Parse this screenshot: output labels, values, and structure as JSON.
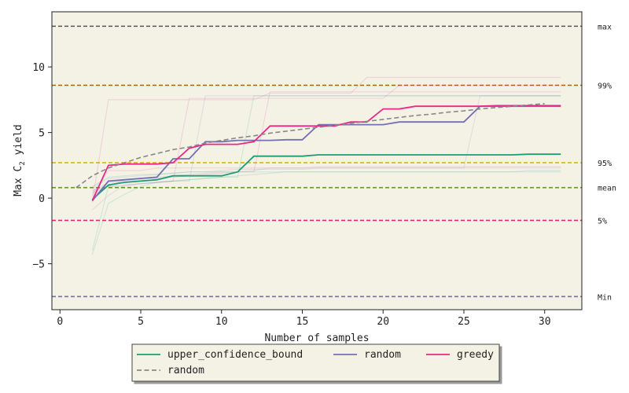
{
  "chart_data": {
    "type": "line",
    "title": "",
    "xlabel": "Number of samples",
    "ylabel_main": "Max C",
    "ylabel_sub": "2",
    "ylabel_tail": " yield",
    "xlim": [
      -0.5,
      32.3
    ],
    "ylim": [
      -8.5,
      14.2
    ],
    "xticks": [
      0,
      5,
      10,
      15,
      20,
      25,
      30
    ],
    "yticks": [
      -5,
      0,
      5,
      10
    ],
    "ytick_labels": [
      "−5",
      "0",
      "5",
      "10"
    ],
    "plot_bg": "#f3f2e5",
    "reference_lines": [
      {
        "label": "max",
        "y": 13.1,
        "color": "#555555"
      },
      {
        "label": "99%",
        "y": 8.6,
        "color": "#a6620a"
      },
      {
        "label": "95%",
        "y": 2.7,
        "color": "#e6a800"
      },
      {
        "label": "mean",
        "y": 0.8,
        "color": "#5a9e1a"
      },
      {
        "label": "5%",
        "y": -1.7,
        "color": "#e0287a"
      },
      {
        "label": "Min",
        "y": -7.5,
        "color": "#7570b3"
      }
    ],
    "series": [
      {
        "name": "upper_confidence_bound",
        "color": "#1b9e77",
        "dashed": false,
        "x": [
          2,
          3,
          4,
          5,
          6,
          7,
          8,
          9,
          10,
          11,
          12,
          13,
          14,
          15,
          16,
          17,
          18,
          19,
          20,
          21,
          22,
          23,
          24,
          25,
          26,
          27,
          28,
          29,
          30,
          31
        ],
        "y": [
          -0.1,
          1.0,
          1.2,
          1.3,
          1.4,
          1.7,
          1.7,
          1.7,
          1.7,
          2.0,
          3.2,
          3.2,
          3.2,
          3.2,
          3.3,
          3.3,
          3.3,
          3.3,
          3.3,
          3.3,
          3.3,
          3.3,
          3.3,
          3.3,
          3.3,
          3.3,
          3.3,
          3.35,
          3.35,
          3.35
        ]
      },
      {
        "name": "random",
        "color": "#7570b3",
        "dashed": false,
        "x": [
          2,
          3,
          4,
          5,
          6,
          7,
          8,
          9,
          10,
          11,
          12,
          13,
          14,
          15,
          16,
          17,
          18,
          19,
          20,
          21,
          22,
          23,
          24,
          25,
          26,
          27,
          28,
          29,
          30,
          31
        ],
        "y": [
          -0.2,
          1.3,
          1.4,
          1.5,
          1.6,
          3.0,
          3.0,
          4.3,
          4.3,
          4.4,
          4.4,
          4.4,
          4.45,
          4.45,
          5.6,
          5.6,
          5.6,
          5.6,
          5.6,
          5.8,
          5.8,
          5.8,
          5.8,
          5.8,
          7.0,
          7.0,
          7.0,
          7.0,
          7.0,
          7.0
        ]
      },
      {
        "name": "greedy",
        "color": "#e7298a",
        "dashed": false,
        "x": [
          2,
          3,
          4,
          5,
          6,
          7,
          8,
          9,
          10,
          11,
          12,
          13,
          14,
          15,
          16,
          17,
          18,
          19,
          20,
          21,
          22,
          23,
          24,
          25,
          26,
          27,
          28,
          29,
          30,
          31
        ],
        "y": [
          -0.2,
          2.5,
          2.6,
          2.6,
          2.6,
          2.7,
          3.8,
          4.1,
          4.1,
          4.1,
          4.3,
          5.5,
          5.5,
          5.5,
          5.5,
          5.5,
          5.8,
          5.8,
          6.8,
          6.8,
          7.0,
          7.0,
          7.0,
          7.0,
          7.0,
          7.05,
          7.05,
          7.05,
          7.05,
          7.05
        ]
      },
      {
        "name": "random",
        "color": "#888888",
        "dashed": true,
        "x": [
          1,
          2,
          3,
          4,
          5,
          6,
          7,
          8,
          9,
          10,
          11,
          12,
          13,
          14,
          15,
          16,
          17,
          18,
          19,
          20,
          21,
          22,
          23,
          24,
          25,
          26,
          27,
          28,
          29,
          30
        ],
        "y": [
          0.8,
          1.7,
          2.3,
          2.7,
          3.1,
          3.4,
          3.7,
          3.9,
          4.2,
          4.4,
          4.6,
          4.75,
          4.95,
          5.1,
          5.25,
          5.4,
          5.55,
          5.7,
          5.85,
          6.0,
          6.15,
          6.3,
          6.4,
          6.55,
          6.65,
          6.8,
          6.9,
          7.0,
          7.1,
          7.2
        ]
      }
    ],
    "background_traces": [
      {
        "color": "#e7298a",
        "y": [
          -0.3,
          7.5,
          7.5,
          7.5,
          7.5,
          7.5,
          7.5,
          7.5,
          7.5,
          7.5,
          7.5,
          8.0,
          8.0,
          8.0,
          8.0,
          8.0,
          8.0,
          9.2,
          9.2,
          9.2,
          9.2,
          9.2,
          9.2,
          9.2,
          9.2,
          9.2,
          9.2,
          9.2,
          9.2,
          9.2
        ]
      },
      {
        "color": "#e7298a",
        "y": [
          0.4,
          0.9,
          0.9,
          1.1,
          1.2,
          1.3,
          7.6,
          7.6,
          7.6,
          7.6,
          7.6,
          7.6,
          7.6,
          7.6,
          7.6,
          7.6,
          7.6,
          7.6,
          7.6,
          8.6,
          8.6,
          8.6,
          8.6,
          8.6,
          8.6,
          8.6,
          8.6,
          8.6,
          8.6,
          8.6
        ]
      },
      {
        "color": "#e7298a",
        "y": [
          0.2,
          2.1,
          2.1,
          2.1,
          2.3,
          2.3,
          2.3,
          2.3,
          2.3,
          2.3,
          2.3,
          2.3,
          2.3,
          2.3,
          2.3,
          2.3,
          2.3,
          2.3,
          2.3,
          2.3,
          2.3,
          2.3,
          2.3,
          2.3,
          2.3,
          2.3,
          2.3,
          2.3,
          2.3,
          2.3
        ]
      },
      {
        "color": "#e7298a",
        "y": [
          0.6,
          0.9,
          1.4,
          1.5,
          1.5,
          1.6,
          1.7,
          1.8,
          1.9,
          2.0,
          2.0,
          8.1,
          8.1,
          8.1,
          8.1,
          8.1,
          8.1,
          8.1,
          8.1,
          8.1,
          8.1,
          8.1,
          8.1,
          8.1,
          8.1,
          8.1,
          8.1,
          8.1,
          8.1,
          8.1
        ]
      },
      {
        "color": "#7570b3",
        "y": [
          -0.9,
          0.2,
          1.0,
          1.1,
          1.2,
          1.3,
          1.3,
          7.8,
          7.8,
          7.8,
          7.8,
          7.8,
          7.8,
          7.8,
          7.8,
          7.8,
          7.8,
          7.8,
          7.8,
          7.8,
          7.8,
          7.8,
          7.8,
          7.8,
          7.8,
          7.8,
          7.8,
          7.8,
          7.8,
          7.8
        ]
      },
      {
        "color": "#7570b3",
        "y": [
          0.5,
          1.2,
          1.3,
          1.4,
          1.6,
          1.7,
          1.8,
          1.9,
          2.0,
          2.0,
          2.1,
          2.3,
          2.3,
          2.3,
          2.4,
          2.4,
          2.4,
          2.4,
          2.4,
          2.4,
          2.4,
          2.4,
          2.4,
          2.4,
          2.4,
          2.4,
          2.4,
          2.4,
          2.4,
          2.4
        ]
      },
      {
        "color": "#7570b3",
        "y": [
          0.8,
          1.5,
          1.6,
          1.7,
          1.8,
          1.9,
          2.0,
          2.0,
          2.1,
          2.2,
          2.2,
          2.2,
          2.2,
          2.2,
          2.3,
          2.3,
          2.3,
          2.3,
          2.3,
          2.3,
          2.3,
          2.3,
          2.3,
          2.3,
          7.8,
          7.8,
          7.8,
          7.8,
          7.8,
          7.8
        ]
      },
      {
        "color": "#1b9e77",
        "y": [
          -4.3,
          -0.4,
          0.3,
          0.9,
          1.2,
          1.3,
          1.4,
          1.5,
          1.6,
          1.6,
          7.8,
          7.8,
          7.8,
          7.8,
          7.8,
          7.8,
          7.8,
          7.8,
          7.8,
          7.8,
          7.8,
          7.8,
          7.8,
          7.8,
          7.8,
          7.8,
          7.8,
          7.8,
          7.8,
          7.8
        ]
      },
      {
        "color": "#1b9e77",
        "y": [
          -4.0,
          0.9,
          1.0,
          1.1,
          1.2,
          1.3,
          1.4,
          1.5,
          1.6,
          1.7,
          1.8,
          1.9,
          2.0,
          2.0,
          2.0,
          2.0,
          2.0,
          2.0,
          2.0,
          2.0,
          2.0,
          2.0,
          2.0,
          2.0,
          2.0,
          2.0,
          2.0,
          2.1,
          2.1,
          2.1
        ]
      },
      {
        "color": "#1b9e77",
        "y": [
          0.9,
          1.6,
          1.7,
          1.8,
          1.8,
          1.9,
          2.0,
          2.0,
          2.0,
          2.0,
          2.0,
          2.0,
          2.0,
          2.0,
          2.0,
          2.0,
          2.0,
          2.0,
          2.0,
          2.0,
          2.0,
          2.0,
          2.0,
          2.0,
          2.0,
          2.0,
          2.0,
          2.0,
          2.0,
          2.0
        ]
      }
    ],
    "legend": {
      "placement": "bottom-center",
      "items": [
        {
          "label": "upper_confidence_bound",
          "color": "#1b9e77",
          "dashed": false
        },
        {
          "label": "random",
          "color": "#7570b3",
          "dashed": false
        },
        {
          "label": "greedy",
          "color": "#e7298a",
          "dashed": false
        },
        {
          "label": "random",
          "color": "#888888",
          "dashed": true
        }
      ]
    }
  }
}
